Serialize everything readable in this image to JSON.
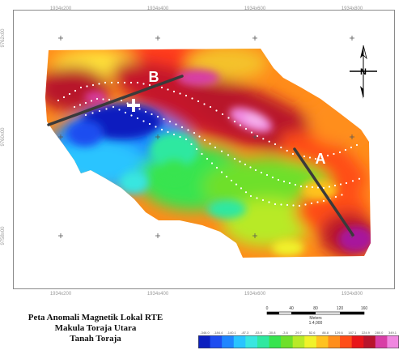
{
  "title": {
    "line1": "Peta Anomali Magnetik Lokal RTE",
    "line2": "Makula Toraja Utara",
    "line3": "Tanah Toraja"
  },
  "grid": {
    "x_labels": [
      "1934x200",
      "1934x400",
      "1934x600",
      "1934x800"
    ],
    "y_labels": [
      "9762x00",
      "9760x00",
      "9758x00"
    ]
  },
  "profiles": {
    "a_label": "A",
    "b_label": "B"
  },
  "north_arrow": {
    "letter": "N"
  },
  "scale": {
    "labels": [
      "0",
      "40",
      "80",
      "120",
      "160"
    ],
    "unit_label": "Meters",
    "ratio_label": "1:4,000"
  },
  "color_scale": {
    "labels": [
      "-346.0",
      "-184.4",
      "-140.1",
      "-87.3",
      "-53.9",
      "-30.8",
      "-3.6",
      "29.7",
      "52.6",
      "88.8",
      "129.6",
      "187.1",
      "224.9",
      "280.0",
      "349.1"
    ],
    "colors": [
      "#0b1fbf",
      "#1e4df0",
      "#1f86ff",
      "#29c4ff",
      "#39e6e0",
      "#2fe8a0",
      "#37e44f",
      "#6ee02a",
      "#b8ea28",
      "#f0f22a",
      "#ffc21f",
      "#ff8e1c",
      "#ff4d18",
      "#e8151a",
      "#b8142c",
      "#d83ea6",
      "#f087e0"
    ]
  },
  "colors": {
    "profile_line": "#3a3a3a",
    "marker_dots": "#ffffff"
  }
}
